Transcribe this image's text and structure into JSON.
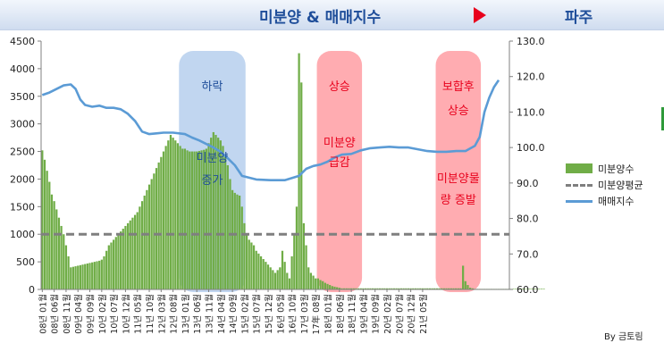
{
  "header": {
    "title": "미분양 & 매매지수",
    "region": "파주"
  },
  "credit": "By 금토림",
  "colors": {
    "bar": "#70ad47",
    "avg": "#7f7f7f",
    "line": "#5b9bd5",
    "blue_box": "#a9c6ea",
    "red_box": "#ff8c93",
    "box_text": "#1f4e9a",
    "red_text": "#e8001c"
  },
  "chart_data": {
    "type": "bar+line",
    "x_start": "2008-01",
    "x_end": "2021-05",
    "x_tick_labels": [
      "08년 01월",
      "08년 06월",
      "08년 11월",
      "09년 04월",
      "09년 09월",
      "10년 02월",
      "10년 07월",
      "10년 12월",
      "11년 05월",
      "11년 10월",
      "12년 03월",
      "12년 08월",
      "13년 01월",
      "13년 06월",
      "13년 11월",
      "14년 04월",
      "14년 09월",
      "15년 02월",
      "15년 07월",
      "15년 12월",
      "16년 05월",
      "16년 10월",
      "17년 03월",
      "17年 08월",
      "18년 01월",
      "18년 06월",
      "18년 11월",
      "19년 04월",
      "19년 09월",
      "20년 02월",
      "20년 07월",
      "20년 12월",
      "21년 05월"
    ],
    "y_left": {
      "min": 0,
      "max": 4500,
      "ticks": [
        "0",
        "500",
        "1000",
        "1500",
        "2000",
        "2500",
        "3000",
        "3500",
        "4000",
        "4500"
      ]
    },
    "y_right": {
      "min": 60,
      "max": 130,
      "ticks": [
        "60.0",
        "70.0",
        "80.0",
        "90.0",
        "100.0",
        "110.0",
        "120.0",
        "130.0"
      ]
    },
    "series": [
      {
        "name": "미분양수",
        "type": "bar",
        "axis": "left",
        "values": [
          2520,
          2350,
          2150,
          1950,
          1720,
          1600,
          1450,
          1300,
          1150,
          1000,
          800,
          600,
          400,
          410,
          420,
          430,
          440,
          450,
          460,
          470,
          480,
          490,
          500,
          510,
          520,
          540,
          600,
          700,
          800,
          850,
          900,
          950,
          1000,
          1050,
          1100,
          1150,
          1200,
          1250,
          1300,
          1350,
          1400,
          1500,
          1600,
          1700,
          1800,
          1900,
          2000,
          2100,
          2200,
          2300,
          2400,
          2500,
          2600,
          2700,
          2800,
          2750,
          2700,
          2650,
          2600,
          2550,
          2550,
          2520,
          2500,
          2500,
          2500,
          2500,
          2510,
          2520,
          2530,
          2550,
          2650,
          2750,
          2850,
          2800,
          2750,
          2700,
          2600,
          2450,
          2250,
          2000,
          1800,
          1750,
          1720,
          1700,
          1500,
          1200,
          1000,
          900,
          850,
          800,
          700,
          650,
          600,
          550,
          500,
          450,
          400,
          350,
          300,
          350,
          400,
          700,
          500,
          300,
          200,
          600,
          1000,
          1500,
          4280,
          3750,
          1200,
          800,
          400,
          300,
          250,
          200,
          200,
          170,
          150,
          120,
          100,
          80,
          60,
          50,
          40,
          30,
          20,
          20,
          20,
          20,
          20,
          20,
          20,
          20,
          20,
          20,
          20,
          20,
          20,
          20,
          20,
          20,
          20,
          20,
          20,
          20,
          20,
          20,
          20,
          20,
          20,
          20,
          20,
          20,
          20,
          20,
          20,
          20,
          20,
          20,
          20,
          20,
          20,
          20,
          20,
          20,
          20,
          20,
          20,
          20,
          20,
          20,
          20,
          20,
          20,
          20,
          20,
          430,
          150,
          80,
          30,
          20,
          10,
          10,
          10,
          10,
          10,
          10,
          10,
          10,
          10,
          10,
          10,
          10,
          10,
          10,
          10,
          10,
          10,
          10,
          10,
          10,
          10,
          10,
          10,
          10,
          10,
          10,
          10,
          10,
          10,
          10
        ]
      },
      {
        "name": "미분양평균",
        "type": "line",
        "dashed": true,
        "axis": "left",
        "value": 1000
      },
      {
        "name": "매매지수",
        "type": "line",
        "axis": "right",
        "points": [
          [
            0,
            114.8
          ],
          [
            3,
            115.5
          ],
          [
            6,
            116.5
          ],
          [
            9,
            117.5
          ],
          [
            12,
            117.8
          ],
          [
            14,
            116.5
          ],
          [
            16,
            113.5
          ],
          [
            18,
            112.0
          ],
          [
            21,
            111.5
          ],
          [
            24,
            111.8
          ],
          [
            27,
            111.2
          ],
          [
            30,
            111.2
          ],
          [
            33,
            110.8
          ],
          [
            36,
            109.5
          ],
          [
            39,
            107.5
          ],
          [
            42,
            104.5
          ],
          [
            45,
            103.8
          ],
          [
            48,
            104.0
          ],
          [
            51,
            104.2
          ],
          [
            55,
            104.2
          ],
          [
            60,
            103.8
          ],
          [
            63,
            102.8
          ],
          [
            66,
            102.0
          ],
          [
            69,
            101.0
          ],
          [
            72,
            100.0
          ],
          [
            75,
            98.8
          ],
          [
            78,
            97.0
          ],
          [
            81,
            95.0
          ],
          [
            84,
            92.0
          ],
          [
            87,
            91.5
          ],
          [
            90,
            91.0
          ],
          [
            96,
            90.8
          ],
          [
            102,
            90.8
          ],
          [
            108,
            92.0
          ],
          [
            111,
            94.0
          ],
          [
            114,
            94.8
          ],
          [
            117,
            95.2
          ],
          [
            120,
            96.0
          ],
          [
            123,
            97.2
          ],
          [
            126,
            98.0
          ],
          [
            130,
            98.2
          ],
          [
            134,
            99.2
          ],
          [
            138,
            99.8
          ],
          [
            142,
            100.0
          ],
          [
            146,
            100.2
          ],
          [
            150,
            100.0
          ],
          [
            154,
            100.0
          ],
          [
            158,
            99.5
          ],
          [
            162,
            99.0
          ],
          [
            166,
            98.8
          ],
          [
            170,
            98.8
          ],
          [
            174,
            99.0
          ],
          [
            178,
            99.0
          ],
          [
            182,
            100.5
          ],
          [
            184,
            103.0
          ],
          [
            186,
            110.0
          ],
          [
            188,
            114.0
          ],
          [
            190,
            117.0
          ],
          [
            192,
            119.0
          ]
        ]
      }
    ],
    "annotations": [
      {
        "shape": "blue",
        "range": [
          58,
          85
        ],
        "labels": [
          "하락",
          "미분양",
          "증가"
        ]
      },
      {
        "shape": "red",
        "range": [
          116,
          134
        ],
        "labels": [
          "상승",
          "미분양",
          "급감"
        ]
      },
      {
        "shape": "red",
        "range": [
          166,
          184
        ],
        "labels": [
          "보합후",
          "상승",
          "미분양물",
          "량 증발"
        ]
      }
    ],
    "legend": [
      "미분양수",
      "미분양평균",
      "매매지수"
    ]
  }
}
